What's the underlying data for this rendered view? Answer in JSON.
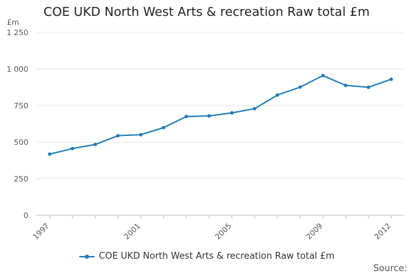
{
  "chart_data": {
    "type": "line",
    "title": "COE UKD North West Arts & recreation Raw total £m",
    "unit": "£m",
    "x": [
      1997,
      1998,
      1999,
      2000,
      2001,
      2002,
      2003,
      2004,
      2005,
      2006,
      2007,
      2008,
      2009,
      2010,
      2011,
      2012
    ],
    "series": [
      {
        "name": "COE UKD North West Arts & recreation Raw total £m",
        "color": "#1f7bb6",
        "values": [
          418,
          456,
          484,
          544,
          551,
          599,
          675,
          679,
          700,
          729,
          822,
          876,
          955,
          888,
          875,
          930
        ]
      }
    ],
    "x_ticks": [
      "1997",
      "2001",
      "2005",
      "2009",
      "2012"
    ],
    "y_ticks": [
      "0",
      "250",
      "500",
      "750",
      "1 000",
      "1 250"
    ],
    "ylim": [
      0,
      1250
    ],
    "grid": true,
    "legend_position": "bottom"
  },
  "footer": {
    "source_label": "Source:"
  }
}
